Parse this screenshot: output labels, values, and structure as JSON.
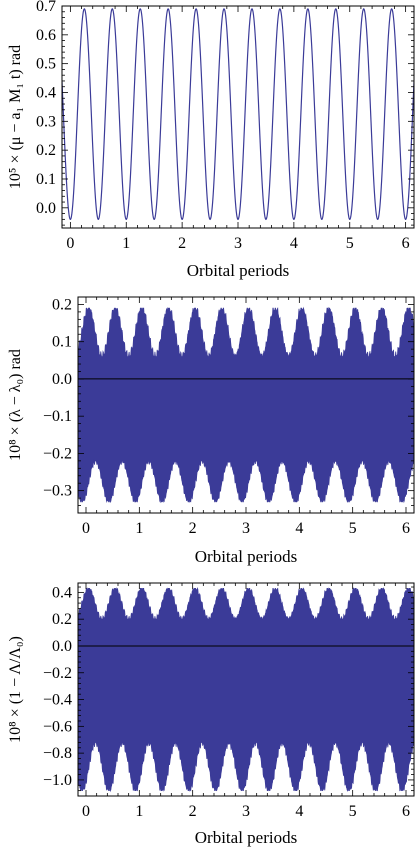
{
  "colors": {
    "series": "#3b3b98",
    "axis": "#000000",
    "zero_line": "#000000"
  },
  "chart_data": [
    {
      "type": "line",
      "title": "",
      "xlabel": "Orbital periods",
      "ylabel": "10⁵ × (μ − a₁ M₁ t) rad",
      "xlim": [
        -0.15,
        6.15
      ],
      "ylim": [
        -0.07,
        0.7
      ],
      "x_ticks": [
        0,
        1,
        2,
        3,
        4,
        5,
        6
      ],
      "y_ticks": [
        0.0,
        0.1,
        0.2,
        0.3,
        0.4,
        0.5,
        0.6,
        0.7
      ],
      "y_tick_labels": [
        "0.0",
        "0.1",
        "0.2",
        "0.3",
        "0.4",
        "0.5",
        "0.6",
        "0.7"
      ],
      "zero_line": false,
      "series": [
        {
          "style": "sinusoid",
          "period": 0.5,
          "min": -0.04,
          "max": 0.69,
          "peak_at": 0.25
        }
      ]
    },
    {
      "type": "area",
      "title": "",
      "xlabel": "Orbital periods",
      "ylabel": "10⁸ × (λ − λ₀) rad",
      "xlim": [
        -0.15,
        6.15
      ],
      "ylim": [
        -0.36,
        0.22
      ],
      "x_ticks": [
        0,
        1,
        2,
        3,
        4,
        5,
        6
      ],
      "y_ticks": [
        -0.3,
        -0.2,
        -0.1,
        0.0,
        0.1,
        0.2
      ],
      "y_tick_labels": [
        "−0.3",
        "−0.2",
        "−0.1",
        "0.0",
        "0.1",
        "0.2"
      ],
      "zero_line": true,
      "series": [
        {
          "style": "rapid-oscillation-envelope",
          "period": 0.5,
          "upper_max": 0.19,
          "upper_min": 0.06,
          "lower_min": -0.33,
          "lower_max": -0.22
        }
      ]
    },
    {
      "type": "area",
      "title": "",
      "xlabel": "Orbital periods",
      "ylabel": "10⁸ × (1 − Λ/Λ₀)",
      "xlim": [
        -0.15,
        6.15
      ],
      "ylim": [
        -1.12,
        0.47
      ],
      "x_ticks": [
        0,
        1,
        2,
        3,
        4,
        5,
        6
      ],
      "y_ticks": [
        -1.0,
        -0.8,
        -0.6,
        -0.4,
        -0.2,
        0.0,
        0.2,
        0.4
      ],
      "y_tick_labels": [
        "−1.0",
        "−0.8",
        "−0.6",
        "−0.4",
        "−0.2",
        "0.0",
        "0.2",
        "0.4"
      ],
      "zero_line": true,
      "series": [
        {
          "style": "rapid-oscillation-envelope",
          "period": 0.5,
          "upper_max": 0.43,
          "upper_min": 0.2,
          "lower_min": -1.08,
          "lower_max": -0.72
        }
      ]
    }
  ]
}
